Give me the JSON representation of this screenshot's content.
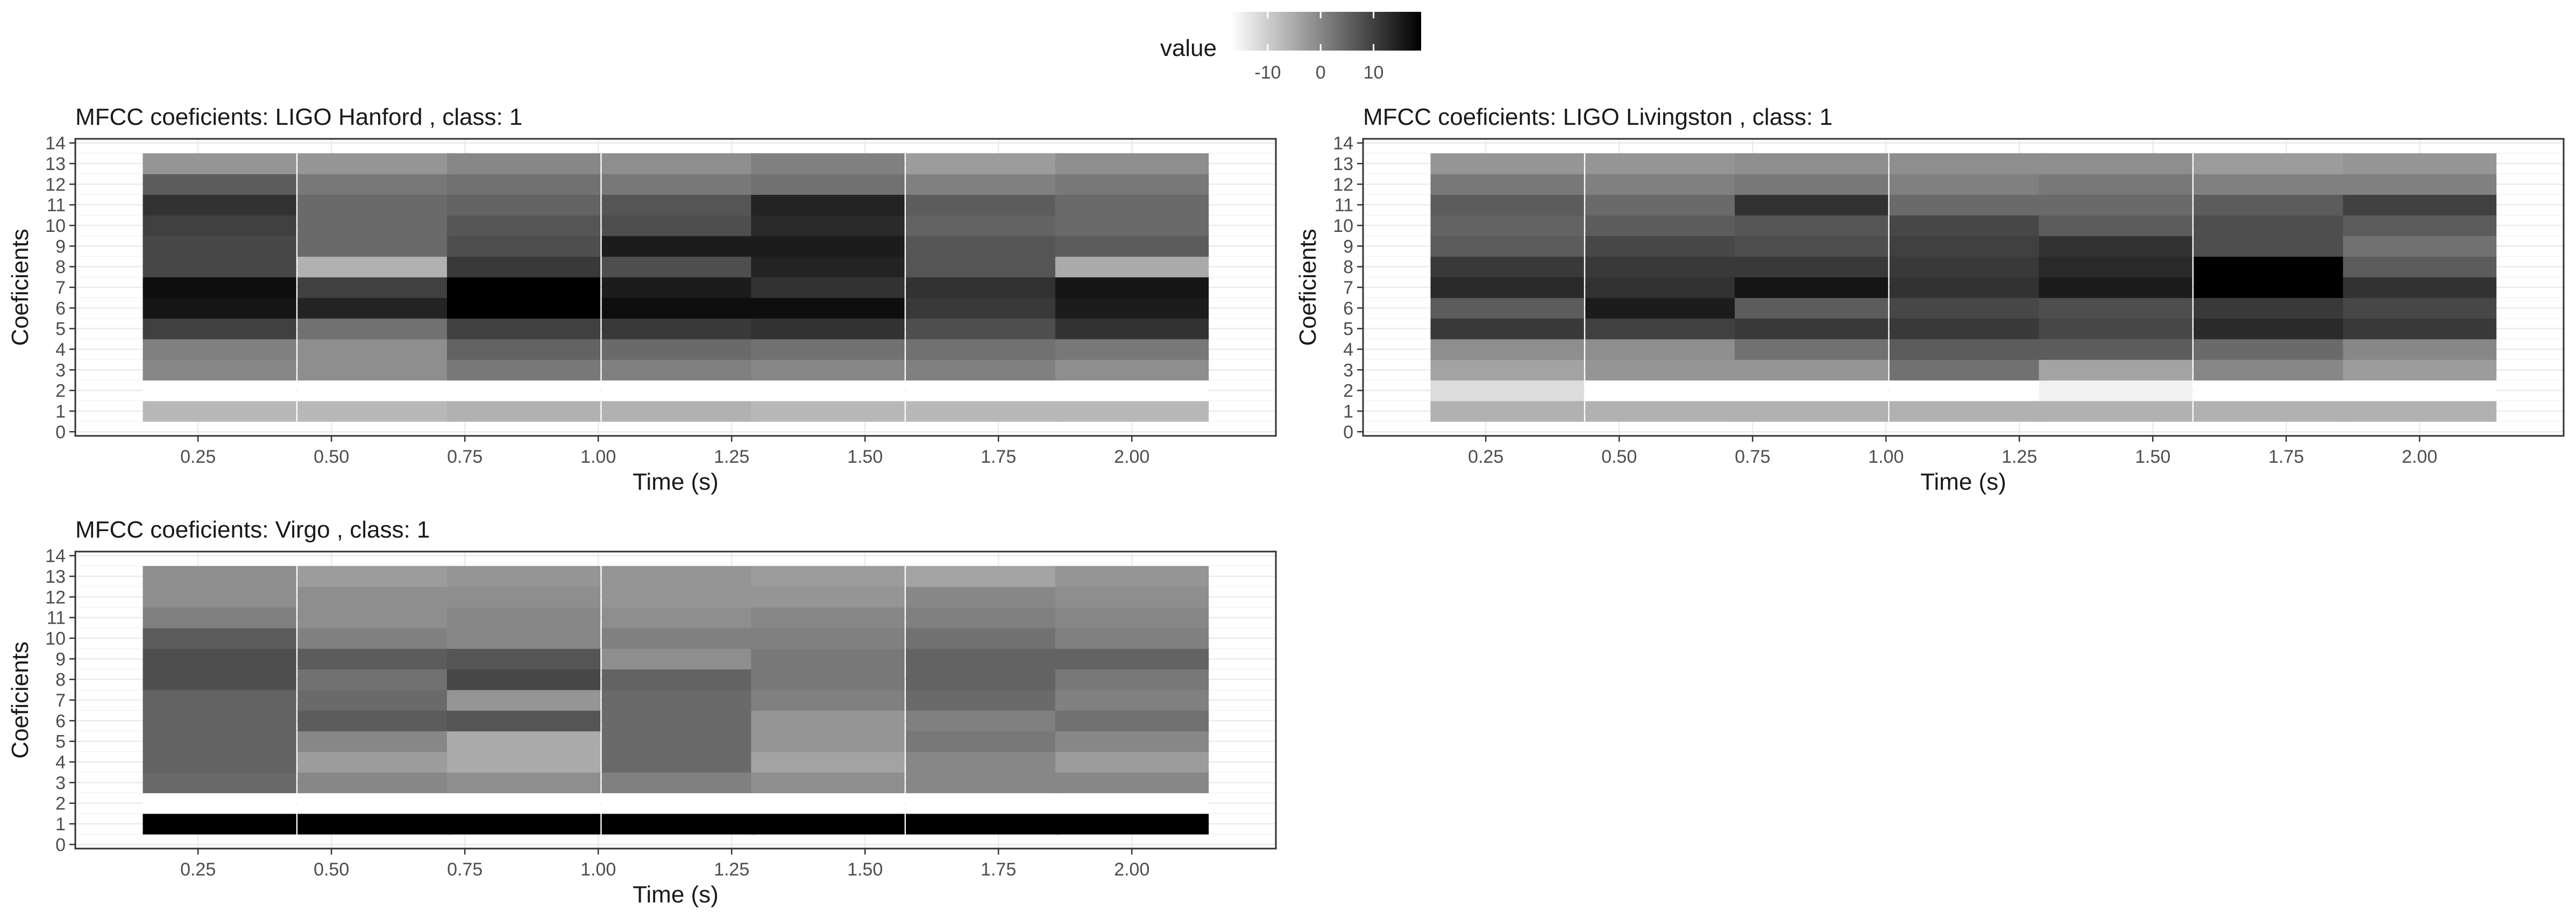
{
  "legend": {
    "title": "value",
    "tick_labels": [
      "-10",
      "0",
      "10"
    ],
    "tick_values": [
      -10,
      0,
      10
    ],
    "range": [
      -17,
      19
    ],
    "low_color": "#ffffff",
    "high_color": "#000000",
    "placement": "top-center"
  },
  "chart_data": [
    {
      "type": "heatmap",
      "title": "MFCC coeficients: LIGO Hanford , class: 1",
      "xlabel": "Time (s)",
      "ylabel": "Coeficients",
      "x_ticks": [
        "0.25",
        "0.50",
        "0.75",
        "1.00",
        "1.25",
        "1.50",
        "1.75",
        "2.00"
      ],
      "y_ticks": [
        "0",
        "1",
        "2",
        "3",
        "4",
        "5",
        "6",
        "7",
        "8",
        "9",
        "10",
        "11",
        "12",
        "13",
        "14"
      ],
      "grid": true,
      "xlim": [
        0.02,
        2.27
      ],
      "ylim": [
        -0.2,
        14.2
      ],
      "time_bins": [
        0.29,
        0.58,
        0.86,
        1.15,
        1.43,
        1.72,
        2.0
      ],
      "bin_width": 0.287,
      "coefficients": [
        1,
        2,
        3,
        4,
        5,
        6,
        7,
        8,
        9,
        10,
        11,
        12,
        13
      ],
      "values": [
        [
          -7,
          -7,
          -6,
          -6,
          -7,
          -7,
          -7
        ],
        [
          -20,
          -20,
          -20,
          -20,
          -20,
          -20,
          -20
        ],
        [
          0,
          -1,
          2,
          1,
          0,
          1,
          -1
        ],
        [
          1,
          -1,
          5,
          4,
          3,
          3,
          2
        ],
        [
          10,
          3,
          10,
          11,
          12,
          8,
          12
        ],
        [
          16,
          14,
          19,
          17,
          17,
          11,
          15
        ],
        [
          17,
          10,
          19,
          15,
          12,
          12,
          16
        ],
        [
          9,
          -6,
          11,
          8,
          14,
          7,
          -5
        ],
        [
          9,
          4,
          8,
          15,
          15,
          7,
          6
        ],
        [
          10,
          4,
          7,
          8,
          13,
          5,
          4
        ],
        [
          12,
          4,
          5,
          7,
          14,
          6,
          4
        ],
        [
          6,
          2,
          3,
          2,
          3,
          1,
          2
        ],
        [
          -2,
          -2,
          0,
          -1,
          1,
          -3,
          -1
        ]
      ]
    },
    {
      "type": "heatmap",
      "title": "MFCC coeficients: LIGO Livingston , class: 1",
      "xlabel": "Time (s)",
      "ylabel": "Coeficients",
      "x_ticks": [
        "0.25",
        "0.50",
        "0.75",
        "1.00",
        "1.25",
        "1.50",
        "1.75",
        "2.00"
      ],
      "y_ticks": [
        "0",
        "1",
        "2",
        "3",
        "4",
        "5",
        "6",
        "7",
        "8",
        "9",
        "10",
        "11",
        "12",
        "13",
        "14"
      ],
      "grid": true,
      "xlim": [
        0.02,
        2.27
      ],
      "ylim": [
        -0.2,
        14.2
      ],
      "time_bins": [
        0.29,
        0.58,
        0.86,
        1.15,
        1.43,
        1.72,
        2.0
      ],
      "bin_width": 0.287,
      "coefficients": [
        1,
        2,
        3,
        4,
        5,
        6,
        7,
        8,
        9,
        10,
        11,
        12,
        13
      ],
      "values": [
        [
          -6,
          -6,
          -6,
          -6,
          -6,
          -6,
          -6
        ],
        [
          -12,
          -20,
          -20,
          -20,
          -15,
          -20,
          -20
        ],
        [
          -4,
          -2,
          -2,
          3,
          -4,
          0,
          -3
        ],
        [
          -1,
          -1,
          3,
          6,
          6,
          4,
          0
        ],
        [
          11,
          10,
          11,
          11,
          9,
          13,
          11
        ],
        [
          6,
          15,
          6,
          9,
          8,
          11,
          9
        ],
        [
          13,
          12,
          16,
          12,
          15,
          19,
          12
        ],
        [
          11,
          11,
          11,
          11,
          13,
          19,
          6
        ],
        [
          6,
          9,
          8,
          10,
          12,
          8,
          3
        ],
        [
          5,
          6,
          7,
          9,
          6,
          8,
          6
        ],
        [
          6,
          4,
          12,
          4,
          4,
          6,
          10
        ],
        [
          2,
          1,
          2,
          1,
          2,
          1,
          1
        ],
        [
          -2,
          -2,
          -1,
          -1,
          -1,
          -3,
          -2
        ]
      ]
    },
    {
      "type": "heatmap",
      "title": "MFCC coeficients: Virgo , class: 1",
      "xlabel": "Time (s)",
      "ylabel": "Coeficients",
      "x_ticks": [
        "0.25",
        "0.50",
        "0.75",
        "1.00",
        "1.25",
        "1.50",
        "1.75",
        "2.00"
      ],
      "y_ticks": [
        "0",
        "1",
        "2",
        "3",
        "4",
        "5",
        "6",
        "7",
        "8",
        "9",
        "10",
        "11",
        "12",
        "13",
        "14"
      ],
      "grid": true,
      "xlim": [
        0.02,
        2.27
      ],
      "ylim": [
        -0.2,
        14.2
      ],
      "time_bins": [
        0.29,
        0.58,
        0.86,
        1.15,
        1.43,
        1.72,
        2.0
      ],
      "bin_width": 0.287,
      "coefficients": [
        1,
        2,
        3,
        4,
        5,
        6,
        7,
        8,
        9,
        10,
        11,
        12,
        13
      ],
      "values": [
        [
          19,
          19,
          19,
          19,
          19,
          19,
          19
        ],
        [
          -20,
          -20,
          -20,
          -20,
          -20,
          -20,
          -20
        ],
        [
          4,
          0,
          -1,
          1,
          -1,
          0,
          0
        ],
        [
          5,
          -3,
          -5,
          4,
          -4,
          0,
          -3
        ],
        [
          5,
          0,
          -5,
          4,
          -2,
          2,
          0
        ],
        [
          5,
          6,
          7,
          4,
          -2,
          1,
          3
        ],
        [
          5,
          4,
          -2,
          4,
          1,
          4,
          1
        ],
        [
          8,
          3,
          9,
          5,
          2,
          5,
          2
        ],
        [
          8,
          6,
          7,
          -1,
          2,
          5,
          5
        ],
        [
          6,
          1,
          0,
          1,
          1,
          3,
          1
        ],
        [
          1,
          -1,
          0,
          -1,
          0,
          1,
          0
        ],
        [
          -1,
          -1,
          -1,
          -2,
          -2,
          0,
          -1
        ],
        [
          -1,
          -3,
          -2,
          -2,
          -3,
          -4,
          -2
        ]
      ]
    }
  ]
}
